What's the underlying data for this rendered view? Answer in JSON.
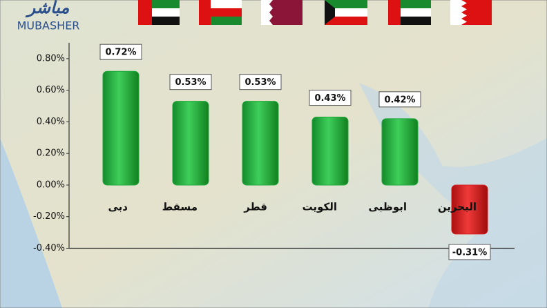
{
  "brand": {
    "arabic": "مباشر",
    "latin": "MUBASHER"
  },
  "chart_data": {
    "type": "bar",
    "categories": [
      "دبى",
      "مسقط",
      "قطر",
      "الكويت",
      "ابوظبى",
      "البحرين"
    ],
    "values": [
      0.72,
      0.53,
      0.53,
      0.43,
      0.42,
      -0.31
    ],
    "value_labels": [
      "0.72%",
      "0.53%",
      "0.53%",
      "0.43%",
      "0.42%",
      "-0.31%"
    ],
    "color": "#1fa83a",
    "negative_color": "#d61c1c",
    "ylim": [
      -0.4,
      0.9
    ],
    "yticks": [
      {
        "value": -0.4,
        "label": "-0.40%"
      },
      {
        "value": -0.2,
        "label": "-0.20%"
      },
      {
        "value": 0,
        "label": "0.00%"
      },
      {
        "value": 0.2,
        "label": "0.20%"
      },
      {
        "value": 0.4,
        "label": "0.40%"
      },
      {
        "value": 0.6,
        "label": "0.60%"
      },
      {
        "value": 0.8,
        "label": "0.80%"
      }
    ],
    "grid": false
  }
}
